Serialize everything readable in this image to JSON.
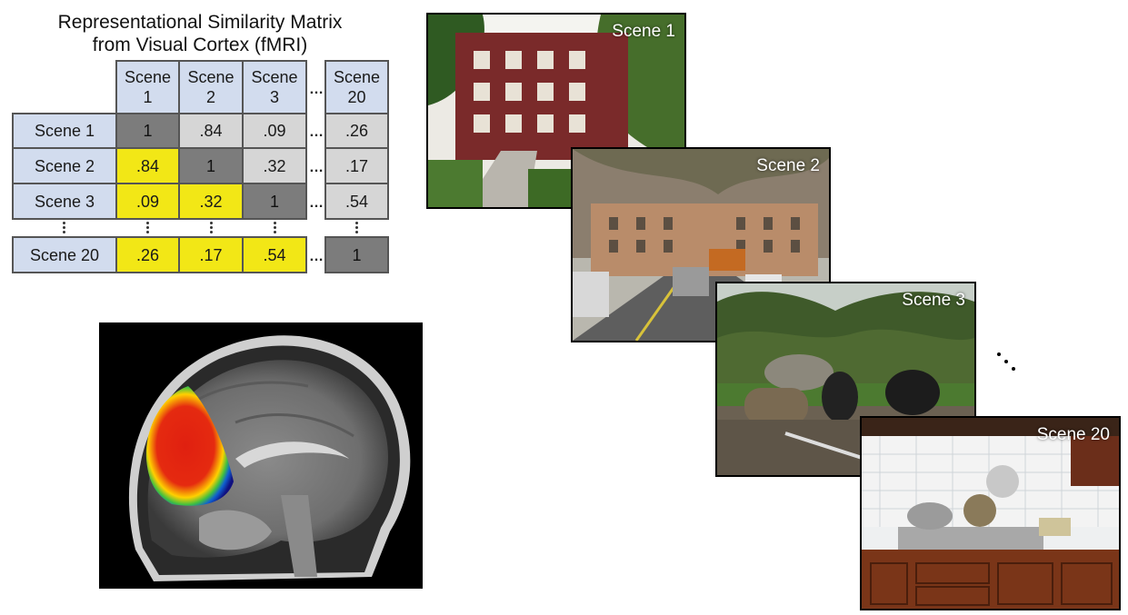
{
  "title": {
    "line1": "Representational Similarity Matrix",
    "line2": "from Visual Cortex (fMRI)"
  },
  "matrix": {
    "col_headers": [
      {
        "line1": "Scene",
        "line2": "1"
      },
      {
        "line1": "Scene",
        "line2": "2"
      },
      {
        "line1": "Scene",
        "line2": "3"
      },
      {
        "line1": "Scene",
        "line2": "20"
      }
    ],
    "row_headers": [
      "Scene 1",
      "Scene 2",
      "Scene 3",
      "Scene 20"
    ],
    "rows": [
      [
        "1",
        ".84",
        ".09",
        ".26"
      ],
      [
        ".84",
        "1",
        ".32",
        ".17"
      ],
      [
        ".09",
        ".32",
        "1",
        ".54"
      ],
      [
        ".26",
        ".17",
        ".54",
        "1"
      ]
    ],
    "ellipsis": "…",
    "colors": {
      "header": "#d2dcee",
      "diagonal": "#7c7c7c",
      "upper": "#d6d6d6",
      "lower": "#f2e716"
    }
  },
  "scenes": [
    {
      "label": "Scene 1",
      "content": "brick-apartment-building-photo"
    },
    {
      "label": "Scene 2",
      "content": "city-street-with-trees-photo"
    },
    {
      "label": "Scene 3",
      "content": "park-playground-with-tires-photo"
    },
    {
      "label": "Scene 20",
      "content": "kitchen-stove-photo"
    }
  ],
  "brain_image": {
    "content": "sagittal-mri-with-visual-cortex-activation"
  }
}
